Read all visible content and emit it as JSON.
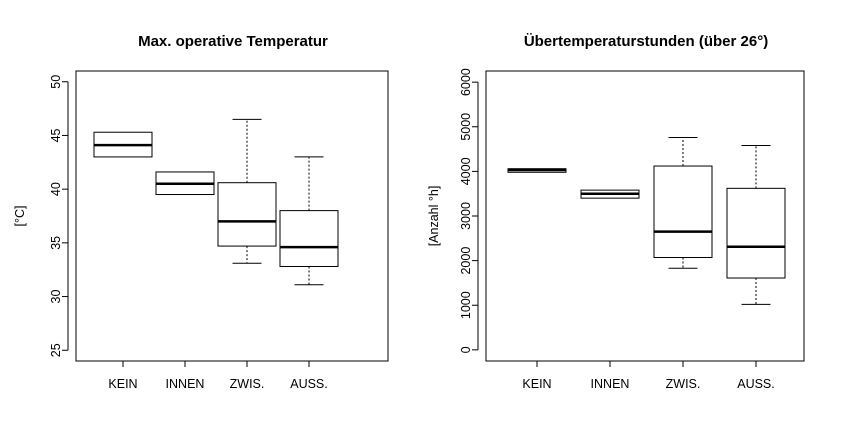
{
  "chart_data": [
    {
      "type": "box",
      "title": "Max. operative Temperatur",
      "ylabel": "[°C]",
      "xlabel": "",
      "ylim": [
        24,
        51
      ],
      "yticks": [
        25,
        30,
        35,
        40,
        45,
        50
      ],
      "categories": [
        "KEIN",
        "INNEN",
        "ZWIS.",
        "AUSS."
      ],
      "boxes": [
        {
          "category": "KEIN",
          "min": 43.0,
          "q1": 43.0,
          "median": 44.1,
          "q3": 45.3,
          "max": 45.3
        },
        {
          "category": "INNEN",
          "min": 39.5,
          "q1": 39.5,
          "median": 40.5,
          "q3": 41.6,
          "max": 41.6
        },
        {
          "category": "ZWIS.",
          "min": 33.1,
          "q1": 34.7,
          "median": 37.0,
          "q3": 40.6,
          "max": 46.5
        },
        {
          "category": "AUSS.",
          "min": 31.1,
          "q1": 32.8,
          "median": 34.6,
          "q3": 38.0,
          "max": 43.0
        }
      ],
      "grid": false,
      "legend": "none"
    },
    {
      "type": "box",
      "title": "Übertemperaturstunden (über 26°)",
      "ylabel": "[Anzahl °h]",
      "xlabel": "",
      "ylim": [
        -250,
        6250
      ],
      "yticks": [
        0,
        1000,
        2000,
        3000,
        4000,
        5000,
        6000
      ],
      "categories": [
        "KEIN",
        "INNEN",
        "ZWIS.",
        "AUSS."
      ],
      "boxes": [
        {
          "category": "KEIN",
          "min": 3980,
          "q1": 3980,
          "median": 4030,
          "q3": 4060,
          "max": 4060
        },
        {
          "category": "INNEN",
          "min": 3400,
          "q1": 3400,
          "median": 3500,
          "q3": 3580,
          "max": 3580
        },
        {
          "category": "ZWIS.",
          "min": 1830,
          "q1": 2070,
          "median": 2650,
          "q3": 4120,
          "max": 4760
        },
        {
          "category": "AUSS.",
          "min": 1020,
          "q1": 1610,
          "median": 2310,
          "q3": 3620,
          "max": 4580
        }
      ],
      "grid": false,
      "legend": "none"
    }
  ]
}
